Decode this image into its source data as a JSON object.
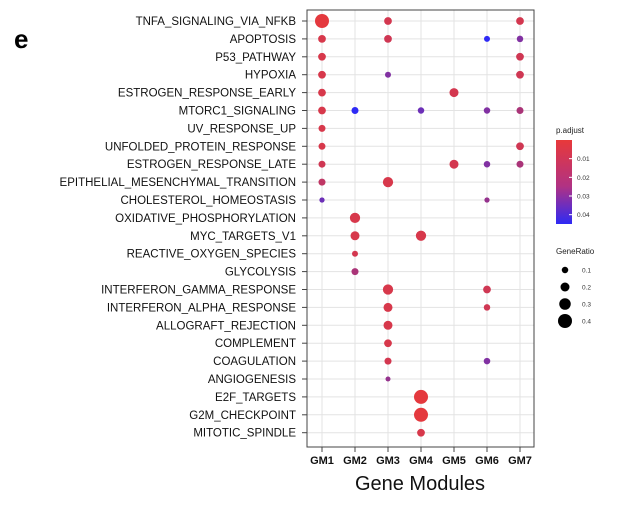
{
  "panel_label": "e",
  "chart_data": {
    "type": "scatter",
    "title": "",
    "xlabel": "Gene Modules",
    "ylabel": "",
    "categories_x": [
      "GM1",
      "GM2",
      "GM3",
      "GM4",
      "GM5",
      "GM6",
      "GM7"
    ],
    "categories_y": [
      "TNFA_SIGNALING_VIA_NFKB",
      "APOPTOSIS",
      "P53_PATHWAY",
      "HYPOXIA",
      "ESTROGEN_RESPONSE_EARLY",
      "MTORC1_SIGNALING",
      "UV_RESPONSE_UP",
      "UNFOLDED_PROTEIN_RESPONSE",
      "ESTROGEN_RESPONSE_LATE",
      "EPITHELIAL_MESENCHYMAL_TRANSITION",
      "CHOLESTEROL_HOMEOSTASIS",
      "OXIDATIVE_PHOSPHORYLATION",
      "MYC_TARGETS_V1",
      "REACTIVE_OXYGEN_SPECIES",
      "GLYCOLYSIS",
      "INTERFERON_GAMMA_RESPONSE",
      "INTERFERON_ALPHA_RESPONSE",
      "ALLOGRAFT_REJECTION",
      "COMPLEMENT",
      "COAGULATION",
      "ANGIOGENESIS",
      "E2F_TARGETS",
      "G2M_CHECKPOINT",
      "MITOTIC_SPINDLE"
    ],
    "points": [
      {
        "x": "GM1",
        "y": "TNFA_SIGNALING_VIA_NFKB",
        "gene_ratio": 0.4,
        "p_adjust": 0.001
      },
      {
        "x": "GM3",
        "y": "TNFA_SIGNALING_VIA_NFKB",
        "gene_ratio": 0.15,
        "p_adjust": 0.005
      },
      {
        "x": "GM7",
        "y": "TNFA_SIGNALING_VIA_NFKB",
        "gene_ratio": 0.15,
        "p_adjust": 0.005
      },
      {
        "x": "GM1",
        "y": "APOPTOSIS",
        "gene_ratio": 0.15,
        "p_adjust": 0.004
      },
      {
        "x": "GM3",
        "y": "APOPTOSIS",
        "gene_ratio": 0.15,
        "p_adjust": 0.006
      },
      {
        "x": "GM6",
        "y": "APOPTOSIS",
        "gene_ratio": 0.08,
        "p_adjust": 0.045
      },
      {
        "x": "GM7",
        "y": "APOPTOSIS",
        "gene_ratio": 0.1,
        "p_adjust": 0.025
      },
      {
        "x": "GM1",
        "y": "P53_PATHWAY",
        "gene_ratio": 0.15,
        "p_adjust": 0.004
      },
      {
        "x": "GM7",
        "y": "P53_PATHWAY",
        "gene_ratio": 0.15,
        "p_adjust": 0.006
      },
      {
        "x": "GM1",
        "y": "HYPOXIA",
        "gene_ratio": 0.15,
        "p_adjust": 0.004
      },
      {
        "x": "GM3",
        "y": "HYPOXIA",
        "gene_ratio": 0.08,
        "p_adjust": 0.025
      },
      {
        "x": "GM7",
        "y": "HYPOXIA",
        "gene_ratio": 0.15,
        "p_adjust": 0.006
      },
      {
        "x": "GM1",
        "y": "ESTROGEN_RESPONSE_EARLY",
        "gene_ratio": 0.15,
        "p_adjust": 0.004
      },
      {
        "x": "GM5",
        "y": "ESTROGEN_RESPONSE_EARLY",
        "gene_ratio": 0.2,
        "p_adjust": 0.005
      },
      {
        "x": "GM1",
        "y": "MTORC1_SIGNALING",
        "gene_ratio": 0.15,
        "p_adjust": 0.004
      },
      {
        "x": "GM2",
        "y": "MTORC1_SIGNALING",
        "gene_ratio": 0.12,
        "p_adjust": 0.045
      },
      {
        "x": "GM4",
        "y": "MTORC1_SIGNALING",
        "gene_ratio": 0.1,
        "p_adjust": 0.03
      },
      {
        "x": "GM6",
        "y": "MTORC1_SIGNALING",
        "gene_ratio": 0.1,
        "p_adjust": 0.025
      },
      {
        "x": "GM7",
        "y": "MTORC1_SIGNALING",
        "gene_ratio": 0.12,
        "p_adjust": 0.015
      },
      {
        "x": "GM1",
        "y": "UV_RESPONSE_UP",
        "gene_ratio": 0.12,
        "p_adjust": 0.004
      },
      {
        "x": "GM1",
        "y": "UNFOLDED_PROTEIN_RESPONSE",
        "gene_ratio": 0.12,
        "p_adjust": 0.004
      },
      {
        "x": "GM7",
        "y": "UNFOLDED_PROTEIN_RESPONSE",
        "gene_ratio": 0.15,
        "p_adjust": 0.006
      },
      {
        "x": "GM1",
        "y": "ESTROGEN_RESPONSE_LATE",
        "gene_ratio": 0.12,
        "p_adjust": 0.006
      },
      {
        "x": "GM5",
        "y": "ESTROGEN_RESPONSE_LATE",
        "gene_ratio": 0.2,
        "p_adjust": 0.005
      },
      {
        "x": "GM6",
        "y": "ESTROGEN_RESPONSE_LATE",
        "gene_ratio": 0.1,
        "p_adjust": 0.025
      },
      {
        "x": "GM7",
        "y": "ESTROGEN_RESPONSE_LATE",
        "gene_ratio": 0.12,
        "p_adjust": 0.015
      },
      {
        "x": "GM1",
        "y": "EPITHELIAL_MESENCHYMAL_TRANSITION",
        "gene_ratio": 0.12,
        "p_adjust": 0.01
      },
      {
        "x": "GM3",
        "y": "EPITHELIAL_MESENCHYMAL_TRANSITION",
        "gene_ratio": 0.25,
        "p_adjust": 0.004
      },
      {
        "x": "GM1",
        "y": "CHOLESTEROL_HOMEOSTASIS",
        "gene_ratio": 0.05,
        "p_adjust": 0.03
      },
      {
        "x": "GM6",
        "y": "CHOLESTEROL_HOMEOSTASIS",
        "gene_ratio": 0.05,
        "p_adjust": 0.02
      },
      {
        "x": "GM2",
        "y": "OXIDATIVE_PHOSPHORYLATION",
        "gene_ratio": 0.25,
        "p_adjust": 0.004
      },
      {
        "x": "GM2",
        "y": "MYC_TARGETS_V1",
        "gene_ratio": 0.2,
        "p_adjust": 0.004
      },
      {
        "x": "GM4",
        "y": "MYC_TARGETS_V1",
        "gene_ratio": 0.25,
        "p_adjust": 0.004
      },
      {
        "x": "GM2",
        "y": "REACTIVE_OXYGEN_SPECIES",
        "gene_ratio": 0.08,
        "p_adjust": 0.005
      },
      {
        "x": "GM2",
        "y": "GLYCOLYSIS",
        "gene_ratio": 0.12,
        "p_adjust": 0.015
      },
      {
        "x": "GM3",
        "y": "INTERFERON_GAMMA_RESPONSE",
        "gene_ratio": 0.25,
        "p_adjust": 0.004
      },
      {
        "x": "GM6",
        "y": "INTERFERON_GAMMA_RESPONSE",
        "gene_ratio": 0.15,
        "p_adjust": 0.006
      },
      {
        "x": "GM3",
        "y": "INTERFERON_ALPHA_RESPONSE",
        "gene_ratio": 0.2,
        "p_adjust": 0.004
      },
      {
        "x": "GM6",
        "y": "INTERFERON_ALPHA_RESPONSE",
        "gene_ratio": 0.1,
        "p_adjust": 0.006
      },
      {
        "x": "GM3",
        "y": "ALLOGRAFT_REJECTION",
        "gene_ratio": 0.2,
        "p_adjust": 0.004
      },
      {
        "x": "GM3",
        "y": "COMPLEMENT",
        "gene_ratio": 0.15,
        "p_adjust": 0.004
      },
      {
        "x": "GM3",
        "y": "COAGULATION",
        "gene_ratio": 0.12,
        "p_adjust": 0.005
      },
      {
        "x": "GM6",
        "y": "COAGULATION",
        "gene_ratio": 0.1,
        "p_adjust": 0.025
      },
      {
        "x": "GM3",
        "y": "ANGIOGENESIS",
        "gene_ratio": 0.04,
        "p_adjust": 0.02
      },
      {
        "x": "GM4",
        "y": "E2F_TARGETS",
        "gene_ratio": 0.4,
        "p_adjust": 0.001
      },
      {
        "x": "GM4",
        "y": "G2M_CHECKPOINT",
        "gene_ratio": 0.4,
        "p_adjust": 0.001
      },
      {
        "x": "GM4",
        "y": "MITOTIC_SPINDLE",
        "gene_ratio": 0.15,
        "p_adjust": 0.004
      }
    ],
    "color_legend": {
      "title": "p.adjust",
      "ticks": [
        "0.01",
        "0.02",
        "0.03",
        "0.04"
      ],
      "range": [
        0.0,
        0.045
      ],
      "high_color": "#e8393a",
      "low_color": "#2e2af5"
    },
    "size_legend": {
      "title": "GeneRatio",
      "ticks": [
        "0.1",
        "0.2",
        "0.3",
        "0.4"
      ]
    },
    "grid": true,
    "legend_placement": "right"
  }
}
